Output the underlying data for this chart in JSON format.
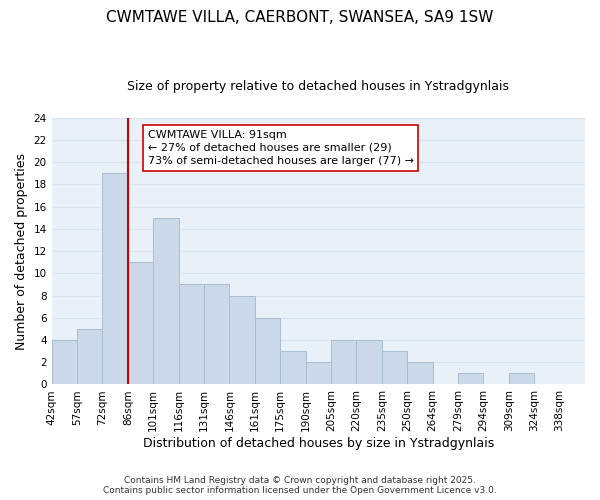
{
  "title": "CWMTAWE VILLA, CAERBONT, SWANSEA, SA9 1SW",
  "subtitle": "Size of property relative to detached houses in Ystradgynlais",
  "xlabel": "Distribution of detached houses by size in Ystradgynlais",
  "ylabel": "Number of detached properties",
  "bar_values": [
    4,
    5,
    19,
    11,
    15,
    9,
    9,
    8,
    6,
    3,
    2,
    4,
    4,
    3,
    2,
    0,
    1,
    0,
    1,
    0
  ],
  "bin_labels": [
    "42sqm",
    "57sqm",
    "72sqm",
    "86sqm",
    "101sqm",
    "116sqm",
    "131sqm",
    "146sqm",
    "161sqm",
    "175sqm",
    "190sqm",
    "205sqm",
    "220sqm",
    "235sqm",
    "250sqm",
    "264sqm",
    "279sqm",
    "294sqm",
    "309sqm",
    "324sqm",
    "338sqm"
  ],
  "bar_color": "#ccd9e8",
  "bar_edge_color": "#a8bdd0",
  "grid_color": "#d8e4f0",
  "bg_color": "#e8f0f8",
  "vline_color": "#cc0000",
  "vline_x": 3.5,
  "annotation_line1": "CWMTAWE VILLA: 91sqm",
  "annotation_line2": "← 27% of detached houses are smaller (29)",
  "annotation_line3": "73% of semi-detached houses are larger (77) →",
  "annotation_box_color": "#ffffff",
  "annotation_box_edge": "#cc0000",
  "ylim": [
    0,
    24
  ],
  "yticks": [
    0,
    2,
    4,
    6,
    8,
    10,
    12,
    14,
    16,
    18,
    20,
    22,
    24
  ],
  "footer_line1": "Contains HM Land Registry data © Crown copyright and database right 2025.",
  "footer_line2": "Contains public sector information licensed under the Open Government Licence v3.0.",
  "title_fontsize": 11,
  "subtitle_fontsize": 9,
  "axis_label_fontsize": 9,
  "tick_fontsize": 7.5,
  "footer_fontsize": 6.5,
  "annotation_fontsize": 8
}
